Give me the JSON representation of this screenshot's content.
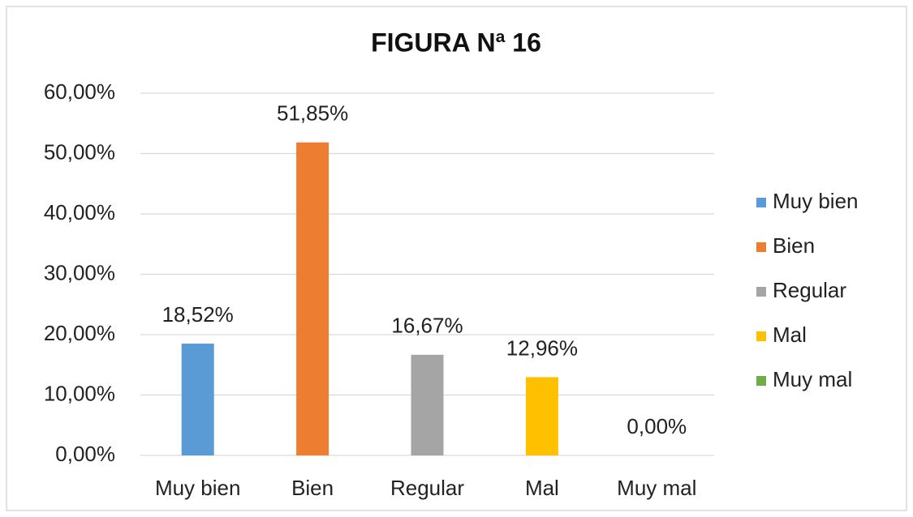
{
  "chart_data": {
    "type": "bar",
    "title": "FIGURA Nª 16",
    "categories": [
      "Muy bien",
      "Bien",
      "Regular",
      "Mal",
      "Muy mal"
    ],
    "values": [
      18.52,
      51.85,
      16.67,
      12.96,
      0
    ],
    "value_labels": [
      "18,52%",
      "51,85%",
      "16,67%",
      "12,96%",
      "0,00%"
    ],
    "colors": [
      "#5b9bd5",
      "#ed7d31",
      "#a5a5a5",
      "#ffc000",
      "#70ad47"
    ],
    "ylim": [
      0,
      60
    ],
    "yticks": [
      {
        "value": 0,
        "label": "0,00%"
      },
      {
        "value": 10,
        "label": "10,00%"
      },
      {
        "value": 20,
        "label": "20,00%"
      },
      {
        "value": 30,
        "label": "30,00%"
      },
      {
        "value": 40,
        "label": "40,00%"
      },
      {
        "value": 50,
        "label": "50,00%"
      },
      {
        "value": 60,
        "label": "60,00%"
      }
    ],
    "grid": true,
    "legend": "right"
  }
}
